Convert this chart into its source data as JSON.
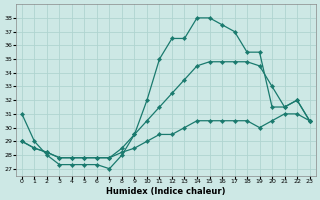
{
  "xlabel": "Humidex (Indice chaleur)",
  "xlim": [
    -0.5,
    23.5
  ],
  "ylim": [
    26.5,
    39.0
  ],
  "bg_color": "#cde8e5",
  "line_color": "#1a7a6e",
  "grid_color": "#b0d4d0",
  "xticks": [
    0,
    1,
    2,
    3,
    4,
    5,
    6,
    7,
    8,
    9,
    10,
    11,
    12,
    13,
    14,
    15,
    16,
    17,
    18,
    19,
    20,
    21,
    22,
    23
  ],
  "yticks": [
    27,
    28,
    29,
    30,
    31,
    32,
    33,
    34,
    35,
    36,
    37,
    38
  ],
  "curve1_x": [
    0,
    1,
    2,
    3,
    4,
    5,
    6,
    7,
    8,
    9,
    10,
    11,
    12,
    13,
    14,
    15,
    16,
    17,
    18,
    19,
    20,
    21,
    22,
    23
  ],
  "curve1_y": [
    31,
    29,
    28,
    27.3,
    27.3,
    27.3,
    27.3,
    27.0,
    28,
    29.5,
    32,
    35,
    36.5,
    36.5,
    38,
    38,
    37.5,
    37,
    35.5,
    35.5,
    31.5,
    31.5,
    32,
    30.5
  ],
  "curve2_x": [
    0,
    1,
    2,
    3,
    4,
    5,
    6,
    7,
    8,
    9,
    10,
    11,
    12,
    13,
    14,
    15,
    16,
    17,
    18,
    19,
    20,
    21,
    22,
    23
  ],
  "curve2_y": [
    29,
    28.5,
    28.2,
    27.8,
    27.8,
    27.8,
    27.8,
    27.8,
    28.5,
    29.5,
    30.5,
    31.5,
    32.5,
    33.5,
    34.5,
    34.8,
    34.8,
    34.8,
    34.8,
    34.5,
    33.0,
    31.5,
    32.0,
    30.5
  ],
  "curve3_x": [
    0,
    1,
    2,
    3,
    4,
    5,
    6,
    7,
    8,
    9,
    10,
    11,
    12,
    13,
    14,
    15,
    16,
    17,
    18,
    19,
    20,
    21,
    22,
    23
  ],
  "curve3_y": [
    29,
    28.5,
    28.2,
    27.8,
    27.8,
    27.8,
    27.8,
    27.8,
    28.2,
    28.5,
    29.0,
    29.5,
    29.5,
    30.0,
    30.5,
    30.5,
    30.5,
    30.5,
    30.5,
    30.0,
    30.5,
    31.0,
    31.0,
    30.5
  ]
}
